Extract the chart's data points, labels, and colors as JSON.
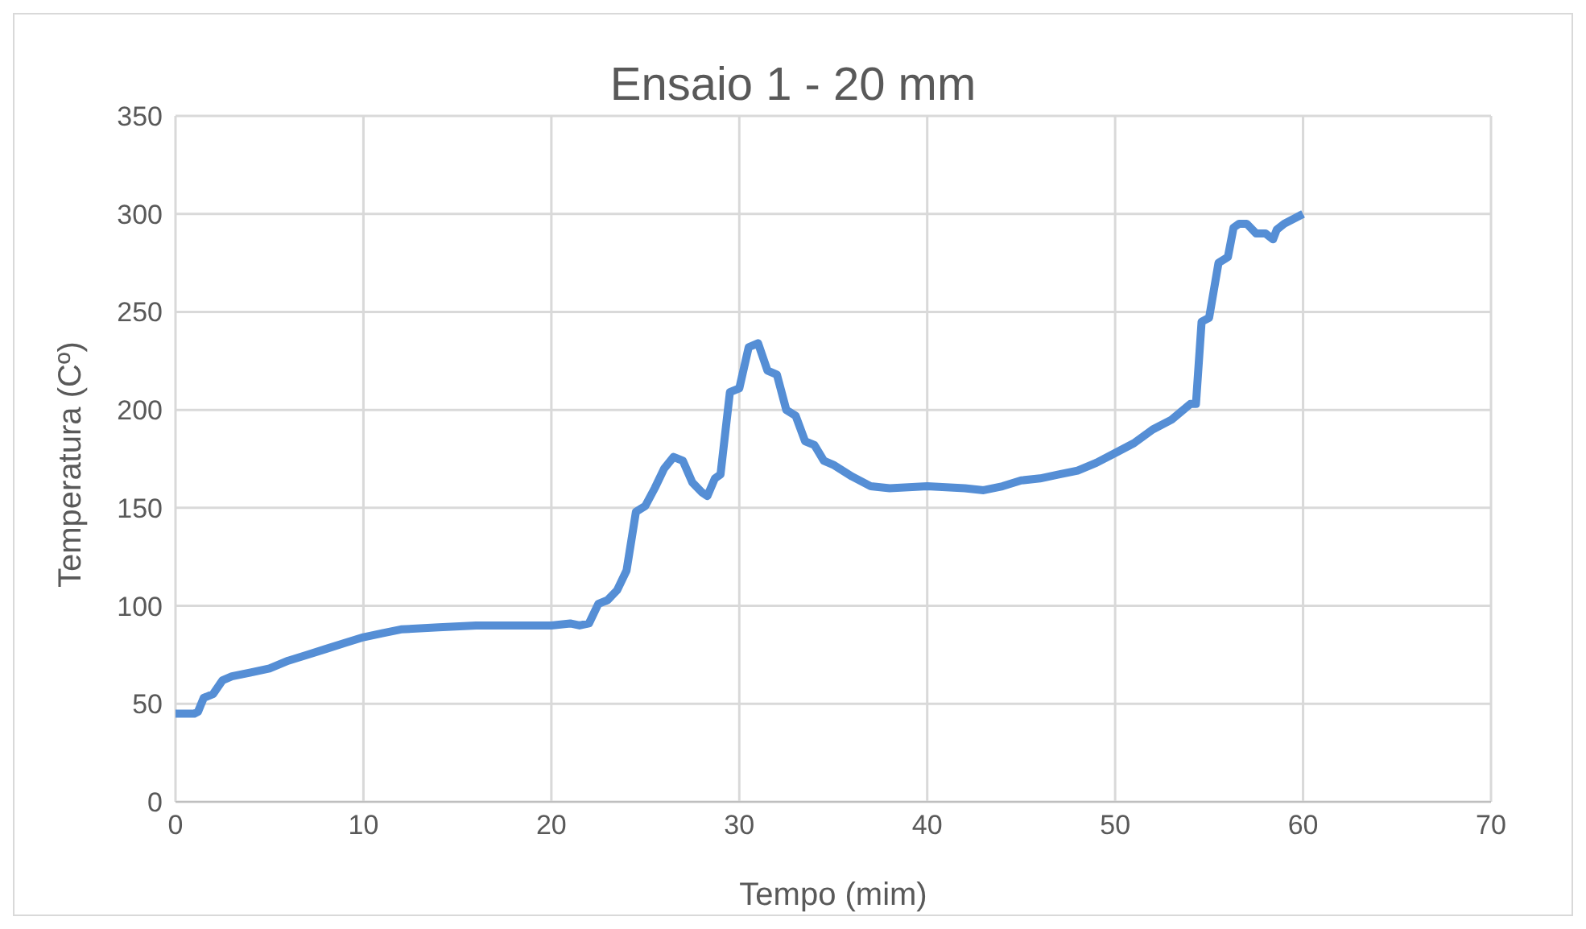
{
  "chart_data": {
    "type": "line",
    "title": "Ensaio 1 - 20 mm",
    "xlabel": "Tempo (mim)",
    "ylabel": "Temperatura (Cº)",
    "x": [
      0,
      1,
      1.2,
      1.5,
      2,
      2.5,
      3,
      4,
      5,
      6,
      7,
      8,
      9,
      10,
      11,
      12,
      14,
      16,
      18,
      20,
      21,
      21.5,
      22,
      22.5,
      23,
      23.5,
      24,
      24.5,
      25,
      25.5,
      26,
      26.5,
      27,
      27.5,
      28,
      28.3,
      28.7,
      29,
      29.5,
      30,
      30.5,
      31,
      31.5,
      32,
      32.5,
      33,
      33.5,
      34,
      34.5,
      35,
      36,
      37,
      38,
      40,
      42,
      43,
      44,
      45,
      46,
      47,
      48,
      49,
      50,
      51,
      52,
      53,
      53.5,
      54,
      54.3,
      54.6,
      55,
      55.5,
      56,
      56.3,
      56.6,
      57,
      57.5,
      58,
      58.4,
      58.6,
      59,
      60
    ],
    "series": [
      {
        "color": "#558ed5",
        "values": [
          45,
          45,
          46,
          53,
          55,
          62,
          64,
          66,
          68,
          72,
          75,
          78,
          81,
          84,
          86,
          88,
          89,
          90,
          90,
          90,
          91,
          90,
          91,
          101,
          103,
          108,
          118,
          148,
          151,
          160,
          170,
          176,
          174,
          163,
          158,
          156,
          165,
          167,
          209,
          211,
          232,
          234,
          220,
          218,
          200,
          197,
          184,
          182,
          174,
          172,
          166,
          161,
          160,
          161,
          160,
          159,
          161,
          164,
          165,
          167,
          169,
          173,
          178,
          183,
          190,
          195,
          199,
          203,
          203,
          245,
          247,
          275,
          278,
          293,
          295,
          295,
          290,
          290,
          287,
          292,
          295,
          300
        ]
      }
    ],
    "xlim": [
      0,
      70
    ],
    "xticks": [
      0,
      10,
      20,
      30,
      40,
      50,
      60,
      70
    ],
    "ylim": [
      0,
      350
    ],
    "yticks": [
      0,
      50,
      100,
      150,
      200,
      250,
      300,
      350
    ],
    "grid": true,
    "legend": false,
    "marker": "none",
    "line_style": "solid"
  }
}
